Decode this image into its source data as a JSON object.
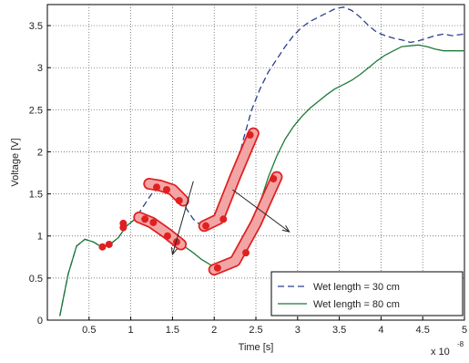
{
  "chart_data": {
    "type": "line",
    "xlabel": "Time [s]",
    "ylabel": "Voltage [V]",
    "x_multiplier": "x 10",
    "x_exponent": "-8",
    "xlim": [
      0,
      5
    ],
    "ylim": [
      0,
      3.75
    ],
    "xticks": [
      "0.5",
      "1",
      "1.5",
      "2",
      "2.5",
      "3",
      "3.5",
      "4",
      "4.5",
      "5"
    ],
    "yticks": [
      "0",
      "0.5",
      "1",
      "1.5",
      "2",
      "2.5",
      "3",
      "3.5"
    ],
    "grid": true,
    "legend_position": "bottom-right",
    "series": [
      {
        "name": "Wet length = 30 cm",
        "color": "#2b3f8f",
        "style": "dashed",
        "x": [
          0.15,
          0.25,
          0.35,
          0.45,
          0.55,
          0.65,
          0.75,
          0.85,
          0.95,
          1.05,
          1.15,
          1.25,
          1.35,
          1.45,
          1.55,
          1.65,
          1.75,
          1.85,
          1.95,
          2.05,
          2.15,
          2.25,
          2.35,
          2.45,
          2.55,
          2.65,
          2.75,
          2.85,
          2.95,
          3.05,
          3.15,
          3.25,
          3.35,
          3.45,
          3.55,
          3.65,
          3.75,
          3.85,
          3.95,
          4.05,
          4.15,
          4.25,
          4.35,
          4.45,
          4.55,
          4.65,
          4.75,
          4.85,
          5.0
        ],
        "y": [
          0.05,
          0.55,
          0.88,
          0.96,
          0.93,
          0.87,
          0.9,
          0.98,
          1.12,
          1.2,
          1.35,
          1.5,
          1.58,
          1.57,
          1.48,
          1.35,
          1.2,
          1.12,
          1.1,
          1.15,
          1.35,
          1.75,
          2.15,
          2.5,
          2.75,
          2.95,
          3.1,
          3.25,
          3.38,
          3.48,
          3.55,
          3.6,
          3.65,
          3.7,
          3.72,
          3.68,
          3.6,
          3.5,
          3.42,
          3.38,
          3.35,
          3.33,
          3.3,
          3.32,
          3.35,
          3.38,
          3.4,
          3.38,
          3.4
        ]
      },
      {
        "name": "Wet length = 80 cm",
        "color": "#1f7a3a",
        "style": "solid",
        "x": [
          0.15,
          0.25,
          0.35,
          0.45,
          0.55,
          0.65,
          0.75,
          0.85,
          0.95,
          1.05,
          1.15,
          1.25,
          1.35,
          1.45,
          1.55,
          1.65,
          1.75,
          1.85,
          1.95,
          2.05,
          2.15,
          2.25,
          2.35,
          2.45,
          2.55,
          2.65,
          2.75,
          2.85,
          2.95,
          3.05,
          3.15,
          3.25,
          3.35,
          3.45,
          3.55,
          3.65,
          3.75,
          3.85,
          3.95,
          4.05,
          4.15,
          4.25,
          4.35,
          4.45,
          4.55,
          4.65,
          4.75,
          4.85,
          5.0
        ],
        "y": [
          0.05,
          0.55,
          0.88,
          0.96,
          0.93,
          0.87,
          0.9,
          0.98,
          1.12,
          1.2,
          1.2,
          1.15,
          1.08,
          1.0,
          0.92,
          0.87,
          0.8,
          0.72,
          0.66,
          0.62,
          0.63,
          0.7,
          0.85,
          1.1,
          1.4,
          1.7,
          1.95,
          2.15,
          2.3,
          2.42,
          2.52,
          2.6,
          2.68,
          2.75,
          2.8,
          2.85,
          2.92,
          3.0,
          3.08,
          3.15,
          3.2,
          3.25,
          3.26,
          3.27,
          3.25,
          3.22,
          3.2,
          3.2,
          3.2
        ]
      }
    ],
    "markers": [
      {
        "x": 0.66,
        "y": 0.87
      },
      {
        "x": 0.74,
        "y": 0.9
      },
      {
        "x": 0.91,
        "y": 1.1
      },
      {
        "x": 0.91,
        "y": 1.15
      },
      {
        "x": 1.17,
        "y": 1.2
      },
      {
        "x": 1.27,
        "y": 1.16
      },
      {
        "x": 1.44,
        "y": 1.0
      },
      {
        "x": 1.55,
        "y": 0.93
      },
      {
        "x": 1.31,
        "y": 1.58
      },
      {
        "x": 1.43,
        "y": 1.55
      },
      {
        "x": 1.58,
        "y": 1.42
      },
      {
        "x": 1.9,
        "y": 1.12
      },
      {
        "x": 2.11,
        "y": 1.2
      },
      {
        "x": 2.43,
        "y": 2.2
      },
      {
        "x": 2.04,
        "y": 0.62
      },
      {
        "x": 2.38,
        "y": 0.8
      },
      {
        "x": 2.71,
        "y": 1.68
      }
    ],
    "highlight_loops": [
      {
        "points": [
          [
            1.1,
            1.22
          ],
          [
            1.25,
            1.16
          ],
          [
            1.45,
            1.02
          ],
          [
            1.6,
            0.9
          ]
        ]
      },
      {
        "points": [
          [
            1.22,
            1.62
          ],
          [
            1.35,
            1.6
          ],
          [
            1.5,
            1.55
          ],
          [
            1.63,
            1.42
          ]
        ]
      },
      {
        "points": [
          [
            1.88,
            1.12
          ],
          [
            2.05,
            1.2
          ],
          [
            2.25,
            1.7
          ],
          [
            2.47,
            2.22
          ]
        ]
      },
      {
        "points": [
          [
            2.0,
            0.6
          ],
          [
            2.25,
            0.7
          ],
          [
            2.5,
            1.15
          ],
          [
            2.75,
            1.7
          ]
        ]
      }
    ],
    "arrows": [
      {
        "from": [
          1.75,
          1.65
        ],
        "to": [
          1.5,
          0.78
        ]
      },
      {
        "from": [
          2.22,
          1.55
        ],
        "to": [
          2.9,
          1.05
        ]
      }
    ],
    "marker_color": "#e02020",
    "highlight_color": "#e02020",
    "arrow_color": "#222222"
  }
}
